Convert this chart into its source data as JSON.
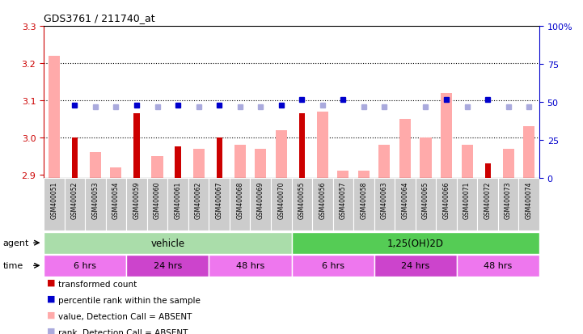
{
  "title": "GDS3761 / 211740_at",
  "samples": [
    "GSM400051",
    "GSM400052",
    "GSM400053",
    "GSM400054",
    "GSM400059",
    "GSM400060",
    "GSM400061",
    "GSM400062",
    "GSM400067",
    "GSM400068",
    "GSM400069",
    "GSM400070",
    "GSM400055",
    "GSM400056",
    "GSM400057",
    "GSM400058",
    "GSM400063",
    "GSM400064",
    "GSM400065",
    "GSM400066",
    "GSM400071",
    "GSM400072",
    "GSM400073",
    "GSM400074"
  ],
  "transformed_count": [
    null,
    3.0,
    null,
    null,
    3.065,
    null,
    2.975,
    null,
    3.0,
    null,
    null,
    null,
    3.065,
    null,
    null,
    null,
    null,
    null,
    null,
    null,
    null,
    2.93,
    null,
    null
  ],
  "value_absent": [
    3.22,
    null,
    2.96,
    2.92,
    null,
    2.95,
    null,
    2.97,
    null,
    2.98,
    2.97,
    3.02,
    null,
    3.07,
    2.91,
    2.91,
    2.98,
    3.05,
    3.0,
    3.12,
    2.98,
    null,
    2.97,
    3.03
  ],
  "percentile_rank": [
    null,
    48,
    null,
    null,
    48,
    null,
    48,
    null,
    48,
    null,
    null,
    48,
    52,
    null,
    52,
    null,
    null,
    null,
    null,
    52,
    null,
    52,
    null,
    null
  ],
  "rank_absent": [
    null,
    null,
    47,
    47,
    null,
    47,
    null,
    47,
    null,
    47,
    47,
    null,
    null,
    48,
    null,
    47,
    47,
    null,
    47,
    null,
    47,
    null,
    47,
    47
  ],
  "ylim_left": [
    2.89,
    3.3
  ],
  "ylim_right": [
    0,
    100
  ],
  "yticks_left": [
    2.9,
    3.0,
    3.1,
    3.2,
    3.3
  ],
  "yticks_right": [
    0,
    25,
    50,
    75,
    100
  ],
  "hlines": [
    3.2,
    3.1,
    3.0
  ],
  "agent_vehicle_range": [
    0,
    12
  ],
  "agent_treatment_range": [
    12,
    24
  ],
  "agent_vehicle_label": "vehicle",
  "agent_treatment_label": "1,25(OH)2D",
  "time_groups": [
    {
      "label": "6 hrs",
      "start": 0,
      "end": 4,
      "color": "#ee77ee"
    },
    {
      "label": "24 hrs",
      "start": 4,
      "end": 8,
      "color": "#cc44cc"
    },
    {
      "label": "48 hrs",
      "start": 8,
      "end": 12,
      "color": "#ee77ee"
    },
    {
      "label": "6 hrs",
      "start": 12,
      "end": 16,
      "color": "#ee77ee"
    },
    {
      "label": "24 hrs",
      "start": 16,
      "end": 20,
      "color": "#cc44cc"
    },
    {
      "label": "48 hrs",
      "start": 20,
      "end": 24,
      "color": "#ee77ee"
    }
  ],
  "transformed_color": "#cc0000",
  "absent_color": "#ffaaaa",
  "percentile_color": "#0000cc",
  "rank_absent_color": "#aaaadd",
  "bg_color": "#ffffff",
  "agent_bg_vehicle": "#aaddaa",
  "agent_bg_treatment": "#55cc55",
  "ylabel_left_color": "#cc0000",
  "ylabel_right_color": "#0000cc",
  "xtick_bg": "#cccccc"
}
